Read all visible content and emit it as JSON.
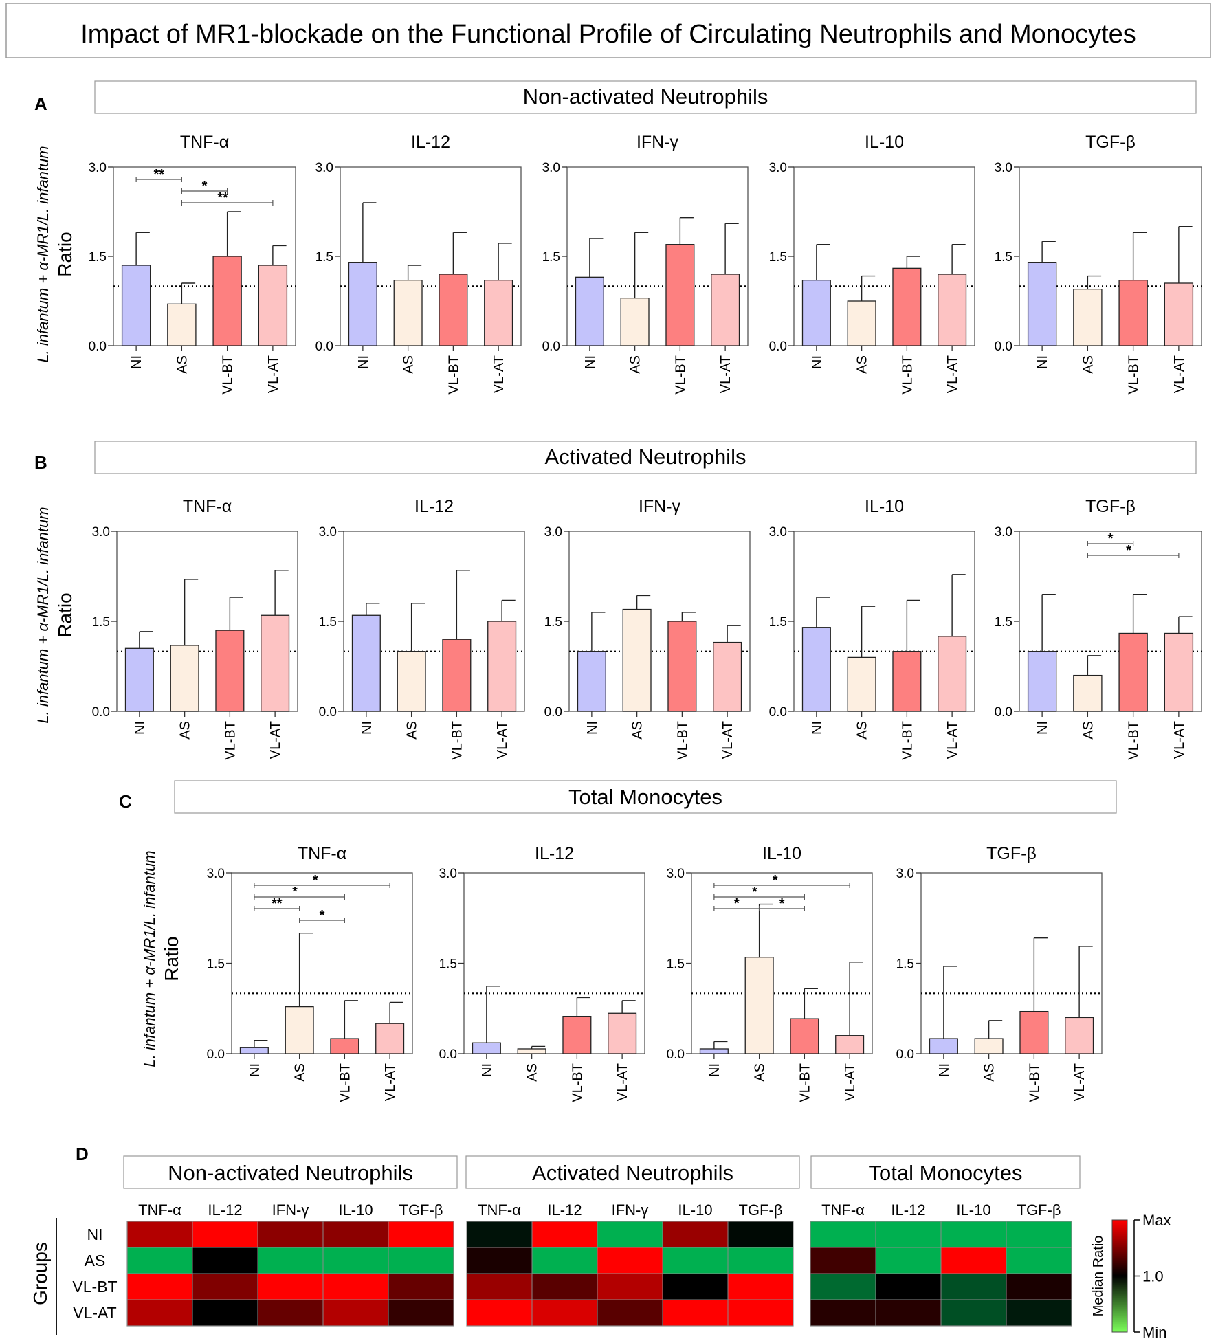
{
  "figure_title": "Impact of MR1-blockade on the Functional Profile of Circulating Neutrophils and Monocytes",
  "colors": {
    "NI": "#c3c3fb",
    "AS": "#fdefe1",
    "VL-BT": "#fd8080",
    "VL-AT": "#fdc3c3",
    "heat_max": "#ff0000",
    "heat_mid": "#000000",
    "heat_min": "#00b050"
  },
  "groups": [
    "NI",
    "AS",
    "VL-BT",
    "VL-AT"
  ],
  "y_label_line1": "L. infantum + α-MR1/L. infantum",
  "y_label_line2": "Ratio",
  "chart_data": [
    {
      "type": "bar",
      "panel": "A",
      "title": "Non-activated Neutrophils",
      "ylim": [
        0,
        3.0
      ],
      "yticks": [
        "0.0",
        "1.5",
        "3.0"
      ],
      "reference_line": 1.0,
      "charts": [
        {
          "title": "TNF-α",
          "values": [
            1.35,
            0.7,
            1.5,
            1.35
          ],
          "error_upper": [
            1.9,
            1.05,
            2.25,
            1.68
          ],
          "significance": [
            {
              "from": 0,
              "to": 1,
              "label": "**",
              "level": 0
            },
            {
              "from": 1,
              "to": 2,
              "label": "*",
              "level": 1
            },
            {
              "from": 1,
              "to": 3,
              "label": "**",
              "level": 2
            }
          ]
        },
        {
          "title": "IL-12",
          "values": [
            1.4,
            1.1,
            1.2,
            1.1
          ],
          "error_upper": [
            2.4,
            1.35,
            1.9,
            1.72
          ],
          "significance": []
        },
        {
          "title": "IFN-γ",
          "values": [
            1.15,
            0.8,
            1.7,
            1.2
          ],
          "error_upper": [
            1.8,
            1.9,
            2.15,
            2.05
          ],
          "significance": []
        },
        {
          "title": "IL-10",
          "values": [
            1.1,
            0.75,
            1.3,
            1.2
          ],
          "error_upper": [
            1.7,
            1.17,
            1.5,
            1.7
          ],
          "significance": []
        },
        {
          "title": "TGF-β",
          "values": [
            1.4,
            0.95,
            1.1,
            1.05
          ],
          "error_upper": [
            1.75,
            1.17,
            1.9,
            2.0
          ],
          "significance": []
        }
      ]
    },
    {
      "type": "bar",
      "panel": "B",
      "title": "Activated Neutrophils",
      "ylim": [
        0,
        3.0
      ],
      "yticks": [
        "0.0",
        "1.5",
        "3.0"
      ],
      "reference_line": 1.0,
      "charts": [
        {
          "title": "TNF-α",
          "values": [
            1.05,
            1.1,
            1.35,
            1.6
          ],
          "error_upper": [
            1.33,
            2.2,
            1.9,
            2.35
          ],
          "significance": []
        },
        {
          "title": "IL-12",
          "values": [
            1.6,
            1.0,
            1.2,
            1.5
          ],
          "error_upper": [
            1.8,
            1.8,
            2.35,
            1.85
          ],
          "significance": []
        },
        {
          "title": "IFN-γ",
          "values": [
            1.0,
            1.7,
            1.5,
            1.15
          ],
          "error_upper": [
            1.65,
            1.93,
            1.65,
            1.43
          ],
          "significance": []
        },
        {
          "title": "IL-10",
          "values": [
            1.4,
            0.9,
            1.0,
            1.25
          ],
          "error_upper": [
            1.9,
            1.75,
            1.85,
            2.28
          ],
          "significance": []
        },
        {
          "title": "TGF-β",
          "values": [
            1.0,
            0.6,
            1.3,
            1.3
          ],
          "error_upper": [
            1.95,
            0.93,
            1.95,
            1.58
          ],
          "significance": [
            {
              "from": 1,
              "to": 2,
              "label": "*",
              "level": 0
            },
            {
              "from": 1,
              "to": 3,
              "label": "*",
              "level": 1
            }
          ]
        }
      ]
    },
    {
      "type": "bar",
      "panel": "C",
      "title": "Total Monocytes",
      "ylim": [
        0,
        3.0
      ],
      "yticks": [
        "0.0",
        "1.5",
        "3.0"
      ],
      "reference_line": 1.0,
      "charts": [
        {
          "title": "TNF-α",
          "values": [
            0.1,
            0.78,
            0.25,
            0.5
          ],
          "error_upper": [
            0.22,
            2.0,
            0.88,
            0.85
          ],
          "significance": [
            {
              "from": 0,
              "to": 3,
              "label": "*",
              "level": 0
            },
            {
              "from": 0,
              "to": 2,
              "label": "*",
              "level": 1
            },
            {
              "from": 0,
              "to": 1,
              "label": "**",
              "level": 2
            },
            {
              "from": 1,
              "to": 2,
              "label": "*",
              "level": 3
            }
          ]
        },
        {
          "title": "IL-12",
          "values": [
            0.18,
            0.08,
            0.62,
            0.67
          ],
          "error_upper": [
            1.12,
            0.12,
            0.93,
            0.88
          ],
          "significance": []
        },
        {
          "title": "IL-10",
          "values": [
            0.08,
            1.6,
            0.58,
            0.3
          ],
          "error_upper": [
            0.2,
            2.48,
            1.08,
            1.52
          ],
          "significance": [
            {
              "from": 0,
              "to": 3,
              "label": "*",
              "level": 0
            },
            {
              "from": 0,
              "to": 2,
              "label": "*",
              "level": 1
            },
            {
              "from": 0,
              "to": 1,
              "label": "*",
              "level": 2
            },
            {
              "from": 1,
              "to": 2,
              "label": "*",
              "level": 2
            }
          ]
        },
        {
          "title": "TGF-β",
          "values": [
            0.25,
            0.25,
            0.7,
            0.6
          ],
          "error_upper": [
            1.45,
            0.55,
            1.92,
            1.78
          ],
          "significance": []
        }
      ]
    },
    {
      "type": "heatmap",
      "panel": "D",
      "row_axis_label": "Groups",
      "rows": [
        "NI",
        "AS",
        "VL-BT",
        "VL-AT"
      ],
      "colorbar": {
        "label": "Median Ratio",
        "ticks": [
          "Max",
          "1.0",
          "Min"
        ]
      },
      "blocks": [
        {
          "title": "Non-activated Neutrophils",
          "columns": [
            "TNF-α",
            "IL-12",
            "IFN-γ",
            "IL-10",
            "TGF-β"
          ],
          "values": [
            [
              0.7,
              1.0,
              0.55,
              0.55,
              1.0
            ],
            [
              -1.0,
              0.0,
              -1.0,
              -1.0,
              -1.0
            ],
            [
              1.0,
              0.5,
              1.0,
              1.0,
              0.4
            ],
            [
              0.7,
              0.0,
              0.4,
              0.7,
              0.2
            ]
          ]
        },
        {
          "title": "Activated Neutrophils",
          "columns": [
            "TNF-α",
            "IL-12",
            "IFN-γ",
            "IL-10",
            "TGF-β"
          ],
          "values": [
            [
              -0.1,
              1.0,
              -1.0,
              0.6,
              -0.05
            ],
            [
              0.1,
              -1.0,
              1.0,
              -1.0,
              -1.0
            ],
            [
              0.6,
              0.35,
              0.7,
              0.0,
              1.0
            ],
            [
              1.0,
              0.85,
              0.35,
              1.0,
              1.0
            ]
          ]
        },
        {
          "title": "Total Monocytes",
          "columns": [
            "TNF-α",
            "IL-12",
            "IL-10",
            "TGF-β"
          ],
          "values": [
            [
              -1.0,
              -1.0,
              -1.0,
              -1.0
            ],
            [
              0.25,
              -1.0,
              1.0,
              -1.0
            ],
            [
              -0.6,
              0.0,
              -0.45,
              0.1
            ],
            [
              0.15,
              0.15,
              -0.45,
              -0.15
            ]
          ]
        }
      ]
    }
  ],
  "panel_letters": [
    "A",
    "B",
    "C",
    "D"
  ]
}
